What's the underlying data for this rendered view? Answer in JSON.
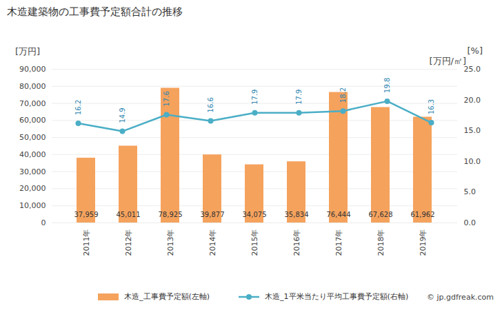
{
  "chart_data": {
    "type": "bar",
    "title": "木造建築物の工事費予定額合計の推移",
    "ylabel": "[万円]",
    "y2label": "[%]",
    "y2sublabel": "[万円/㎡]",
    "caption": "© jp.gdfreak.com",
    "categories": [
      "2011年",
      "2012年",
      "2013年",
      "2014年",
      "2015年",
      "2016年",
      "2017年",
      "2018年",
      "2019年"
    ],
    "series": [
      {
        "name": "木造_工事費予定額(左軸)",
        "type": "bar",
        "color": "#f5a25d",
        "values": [
          37959,
          45011,
          78925,
          39877,
          34075,
          35834,
          76444,
          67628,
          61962
        ],
        "value_labels": [
          "37,959",
          "45,011",
          "78,925",
          "39,877",
          "34,075",
          "35,834",
          "76,444",
          "67,628",
          "61,962"
        ]
      },
      {
        "name": "木造_1平米当たり平均工事費予定額(右軸)",
        "type": "line",
        "axis": "y2",
        "color": "#4aaec6",
        "marker": "circle",
        "values": [
          16.2,
          14.9,
          17.6,
          16.6,
          17.9,
          17.9,
          18.2,
          19.8,
          16.3
        ]
      }
    ],
    "ylim": [
      0,
      90000
    ],
    "yticks": [
      0,
      {
        "value": 10000,
        "label": "10,000"
      },
      {
        "value": 20000,
        "label": "20,000"
      },
      {
        "value": 30000,
        "label": "30,000"
      },
      {
        "value": 40000,
        "label": "40,000"
      },
      {
        "value": 50000,
        "label": "50,000"
      },
      {
        "value": 60000,
        "label": "60,000"
      },
      {
        "value": 70000,
        "label": "70,000"
      },
      {
        "value": 80000,
        "label": "80,000"
      },
      {
        "value": 90000,
        "label": "90,000"
      }
    ],
    "y2lim": [
      0,
      25
    ],
    "y2ticks": [
      {
        "value": 0,
        "label": "0.0"
      },
      {
        "value": 5,
        "label": "5.0"
      },
      {
        "value": 10,
        "label": "10.0"
      },
      {
        "value": 15,
        "label": "15.0"
      },
      {
        "value": 20,
        "label": "20.0"
      },
      {
        "value": 25,
        "label": "25.0"
      }
    ],
    "grid": true,
    "data_labels": true
  }
}
